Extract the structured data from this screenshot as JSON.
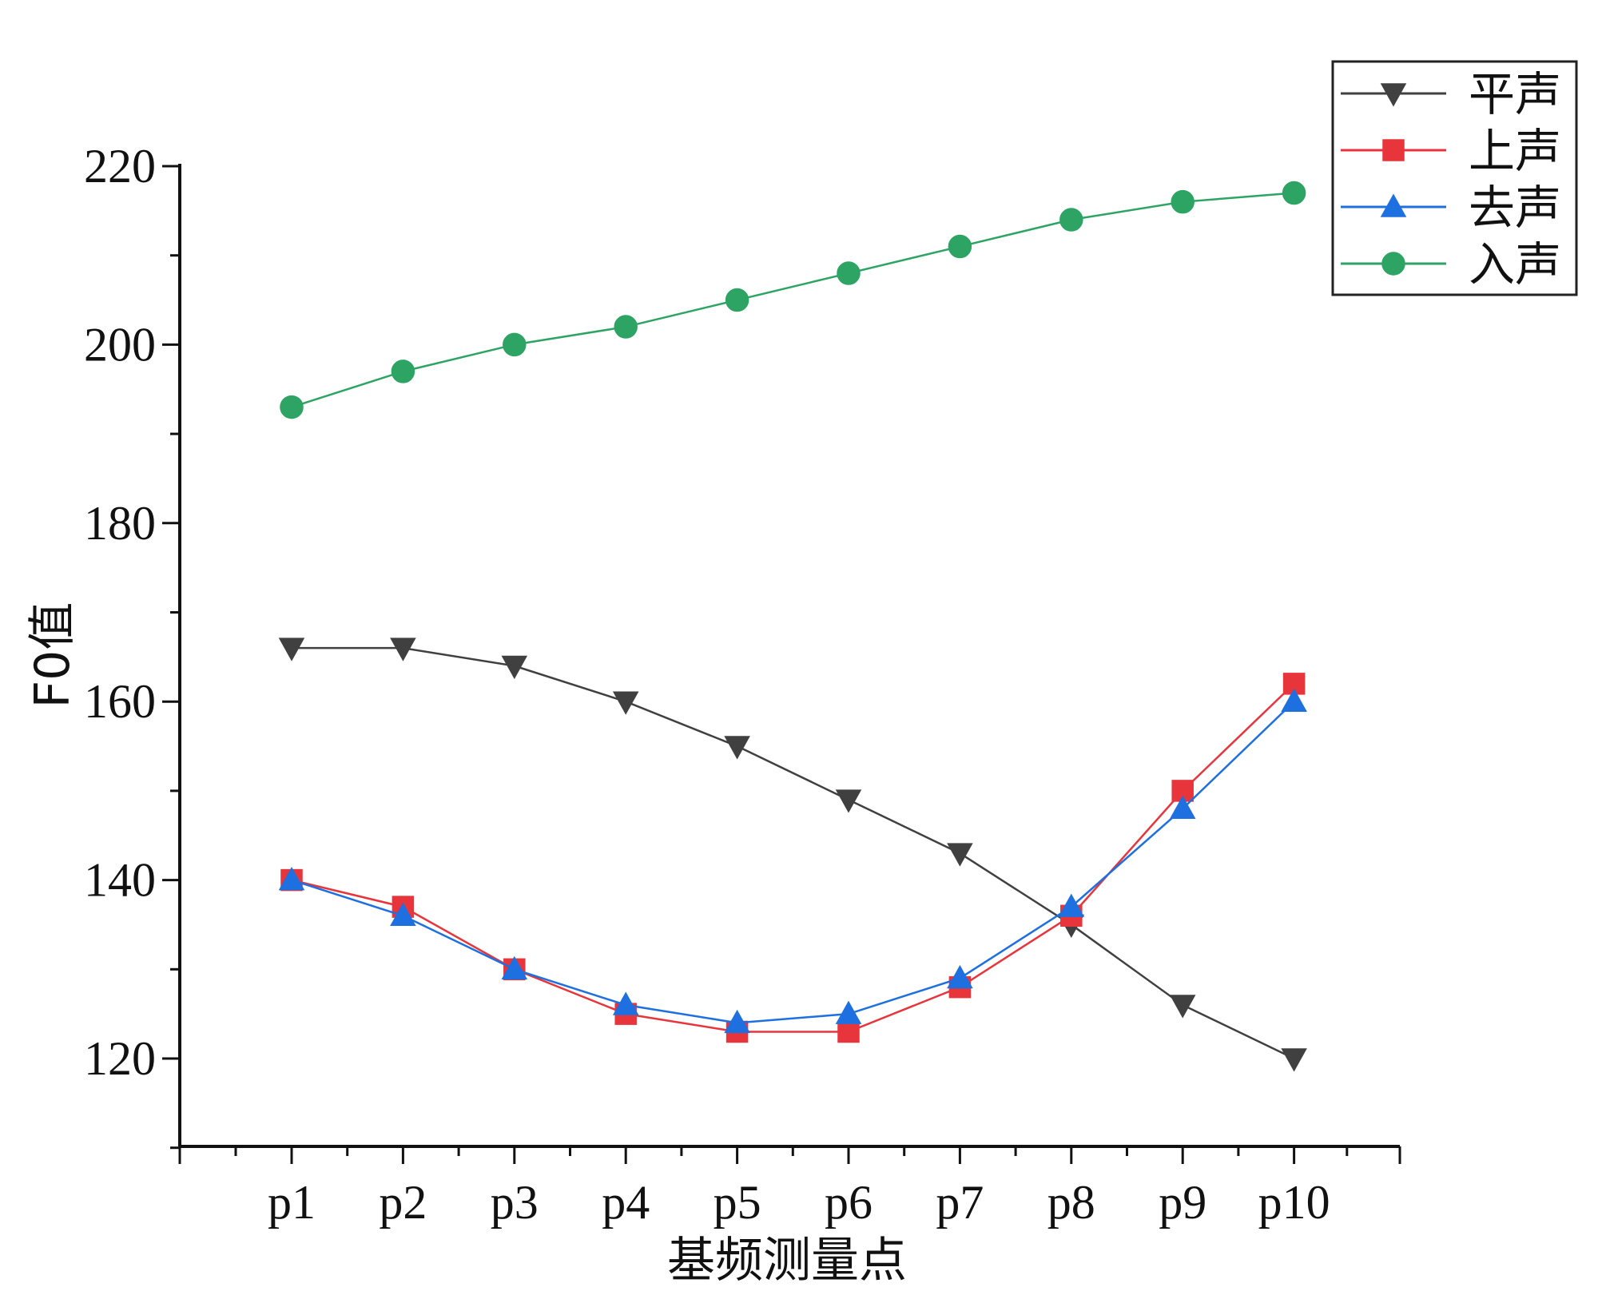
{
  "chart_data": {
    "type": "line",
    "title": "",
    "xlabel": "基频测量点",
    "ylabel": "F0值",
    "categories": [
      "p1",
      "p2",
      "p3",
      "p4",
      "p5",
      "p6",
      "p7",
      "p8",
      "p9",
      "p10"
    ],
    "ylim": [
      110,
      220
    ],
    "yticks": [
      120,
      140,
      160,
      180,
      200,
      220
    ],
    "y_minor_step": 10,
    "legend_position": "top-right",
    "series": [
      {
        "name": "平声",
        "color": "#404040",
        "marker": "triangle-down",
        "values": [
          166,
          166,
          164,
          160,
          155,
          149,
          143,
          135,
          126,
          120
        ]
      },
      {
        "name": "上声",
        "color": "#e8343b",
        "marker": "square",
        "values": [
          140,
          137,
          130,
          125,
          123,
          123,
          128,
          136,
          150,
          162
        ]
      },
      {
        "name": "去声",
        "color": "#1e6fe0",
        "marker": "triangle-up",
        "values": [
          140,
          136,
          130,
          126,
          124,
          125,
          129,
          137,
          148,
          160
        ]
      },
      {
        "name": "入声",
        "color": "#2ea464",
        "marker": "circle",
        "values": [
          193,
          197,
          200,
          202,
          205,
          208,
          211,
          214,
          216,
          217
        ]
      }
    ]
  }
}
